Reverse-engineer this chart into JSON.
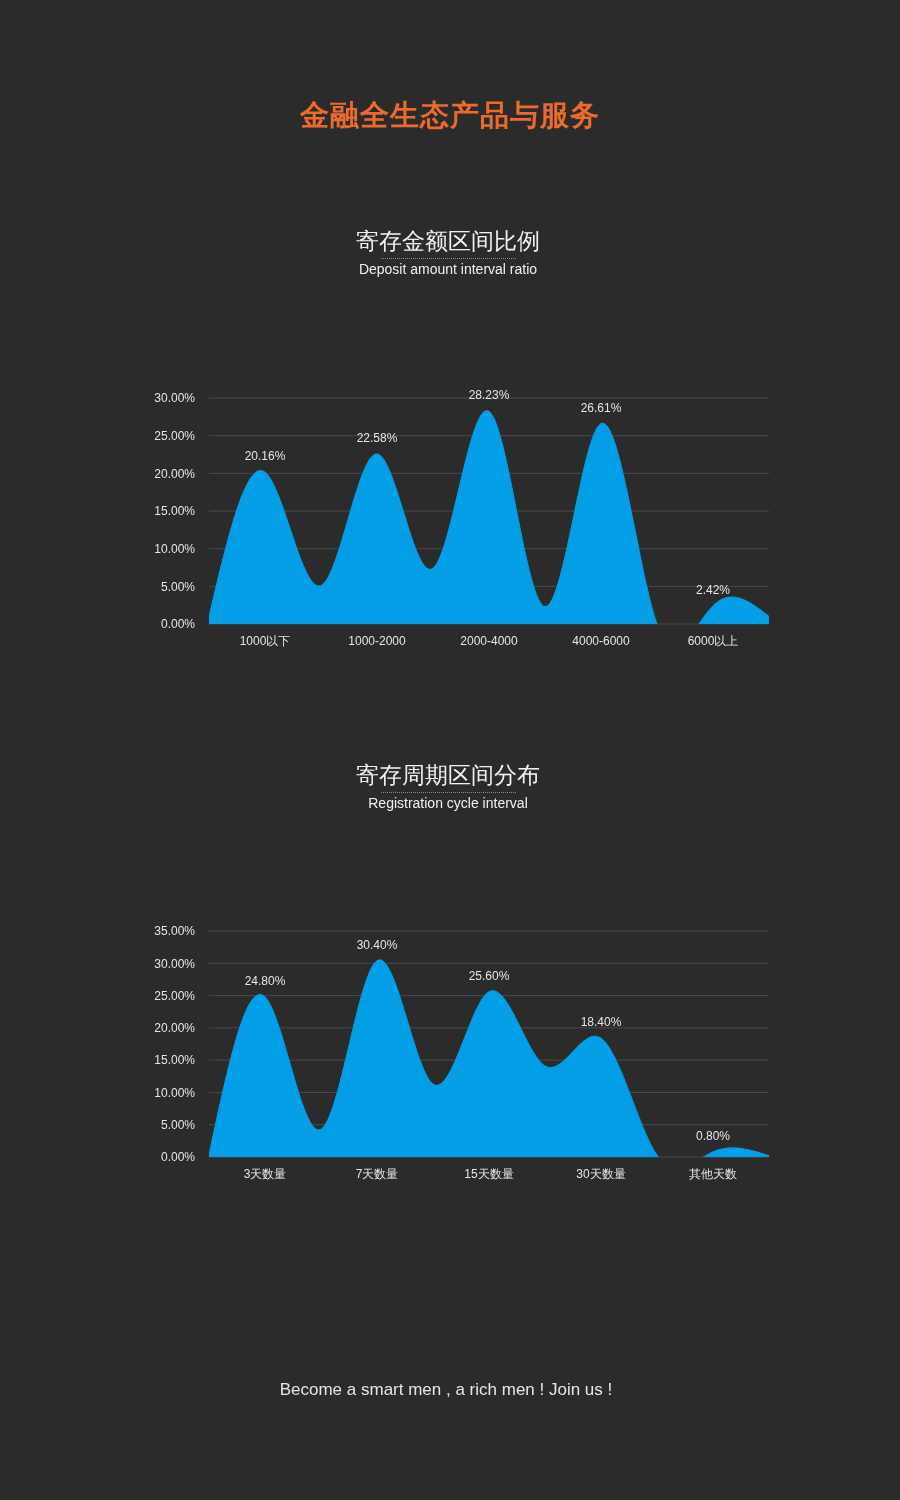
{
  "chart_data": [
    {
      "type": "area",
      "title": "寄存金额区间比例",
      "subtitle": "Deposit amount interval ratio",
      "annotations": [
        "金融全生态产品与服务"
      ],
      "categories": [
        null,
        "1000以下",
        null,
        "1000-2000",
        null,
        "2000-4000",
        null,
        "4000-6000",
        null,
        "6000以上",
        null
      ],
      "values": [
        1.0,
        20.16,
        5.1,
        22.58,
        7.4,
        28.23,
        2.3,
        26.61,
        0,
        2.42,
        1.0
      ],
      "value_labels": [
        null,
        "20.16%",
        null,
        "22.58%",
        null,
        "28.23%",
        null,
        "26.61%",
        null,
        "2.42%",
        null
      ],
      "color": "#029fe6",
      "ylim": [
        0,
        30
      ],
      "yticks": [
        {
          "value": 0,
          "label": "0.00%"
        },
        {
          "value": 5,
          "label": "5.00%"
        },
        {
          "value": 10,
          "label": "10.00%"
        },
        {
          "value": 15,
          "label": "15.00%"
        },
        {
          "value": 20,
          "label": "20.00%"
        },
        {
          "value": 25,
          "label": "25.00%"
        },
        {
          "value": 30,
          "label": "30.00%"
        }
      ],
      "grid": "y"
    },
    {
      "type": "area",
      "title": "寄存周期区间分布",
      "subtitle": "Registration cycle interval",
      "annotations": [
        "Become a smart men , a rich men ! Join us !"
      ],
      "categories": [
        null,
        "3天数量",
        null,
        "7天数量",
        null,
        "15天数量",
        null,
        "30天数量",
        null,
        "其他天数",
        null
      ],
      "values": [
        0.3,
        24.8,
        4.3,
        30.4,
        11.3,
        25.6,
        14.1,
        18.4,
        0.3,
        0.8,
        0.2
      ],
      "value_labels": [
        null,
        "24.80%",
        null,
        "30.40%",
        null,
        "25.60%",
        null,
        "18.40%",
        null,
        "0.80%",
        null
      ],
      "color": "#029fe6",
      "ylim": [
        0,
        35
      ],
      "yticks": [
        {
          "value": 0,
          "label": "0.00%"
        },
        {
          "value": 5,
          "label": "5.00%"
        },
        {
          "value": 10,
          "label": "10.00%"
        },
        {
          "value": 15,
          "label": "15.00%"
        },
        {
          "value": 20,
          "label": "20.00%"
        },
        {
          "value": 25,
          "label": "25.00%"
        },
        {
          "value": 30,
          "label": "30.00%"
        },
        {
          "value": 35,
          "label": "35.00%"
        }
      ],
      "grid": "y"
    }
  ]
}
